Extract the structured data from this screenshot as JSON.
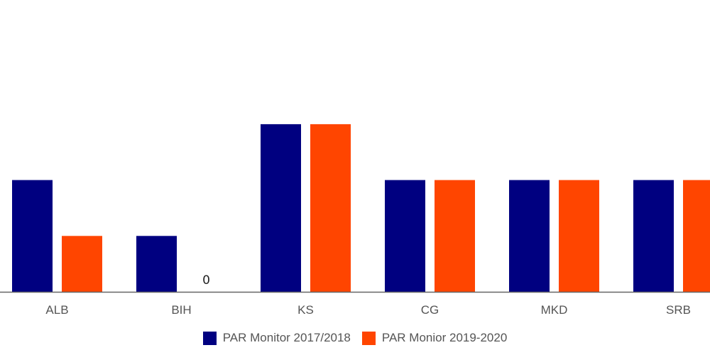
{
  "chart_data": {
    "type": "bar",
    "title": "",
    "xlabel": "",
    "ylabel": "",
    "categories": [
      "ALB",
      "BIH",
      "KS",
      "CG",
      "MKD",
      "SRB"
    ],
    "series": [
      {
        "name": "PAR Monitor 2017/2018",
        "color": "#000080",
        "values": [
          2,
          1,
          3,
          2,
          2,
          2
        ]
      },
      {
        "name": "PAR Monior 2019-2020",
        "color": "#ff4500",
        "values": [
          1,
          0,
          3,
          2,
          2,
          2
        ]
      }
    ],
    "data_labels": [
      {
        "series": 1,
        "category": "BIH",
        "text": "0"
      }
    ],
    "ylim": [
      0,
      5
    ],
    "grid": false,
    "legend": "bottom-center"
  }
}
